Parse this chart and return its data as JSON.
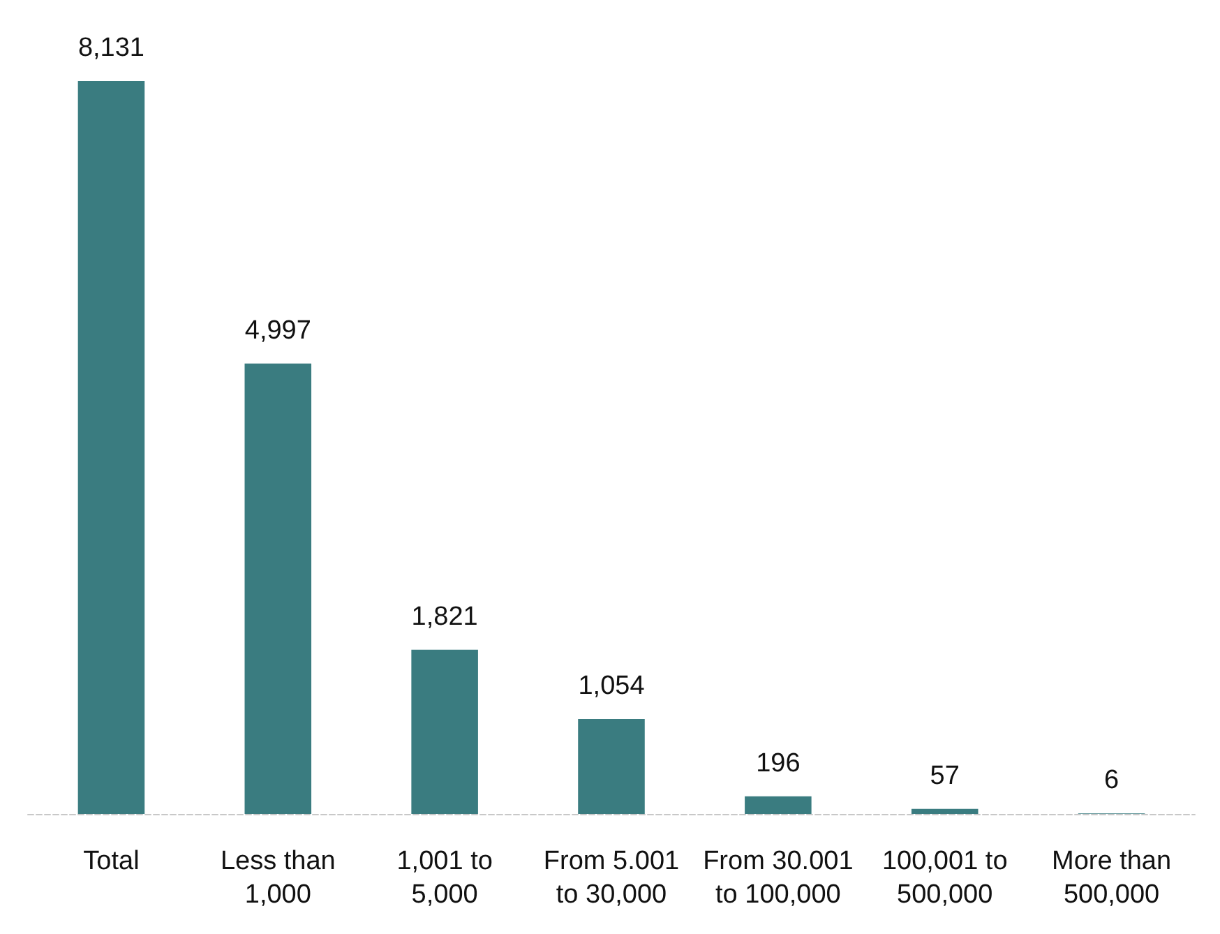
{
  "chart_data": {
    "type": "bar",
    "categories": [
      "Total",
      "Less than 1,000",
      "1,001 to 5,000",
      "From 5.001 to 30,000",
      "From 30.001 to 100,000",
      "100,001 to 500,000",
      "More than 500,000"
    ],
    "values": [
      8131,
      4997,
      1821,
      1054,
      196,
      57,
      6
    ],
    "value_labels": [
      "8,131",
      "4,997",
      "1,821",
      "1,054",
      "196",
      "57",
      "6"
    ],
    "color": "#3a7c80"
  }
}
